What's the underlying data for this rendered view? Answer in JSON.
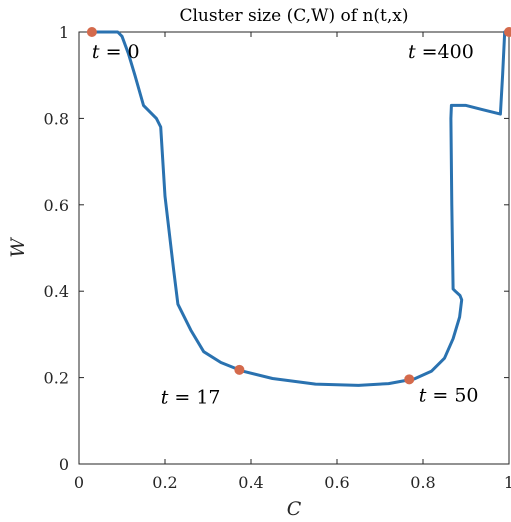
{
  "chart_data": {
    "type": "line",
    "title": "Cluster size (C,W) of n(t,x)",
    "xlabel": "C",
    "ylabel": "W",
    "xlim": [
      0,
      1
    ],
    "ylim": [
      0,
      1
    ],
    "xticks": [
      "0",
      "0.2",
      "0.4",
      "0.6",
      "0.8",
      "1"
    ],
    "yticks": [
      "0",
      "0.2",
      "0.4",
      "0.6",
      "0.8",
      "1"
    ],
    "grid": false,
    "line_color": "#2a72b0",
    "marker_color": "#d46a4c",
    "series": [
      {
        "x": [
          0.03,
          0.09,
          0.1,
          0.115,
          0.13,
          0.15,
          0.18,
          0.19,
          0.2,
          0.22,
          0.23,
          0.26,
          0.29,
          0.33,
          0.38,
          0.45,
          0.55,
          0.65,
          0.72,
          0.78,
          0.82,
          0.85,
          0.87,
          0.885,
          0.89,
          0.886,
          0.875,
          0.87,
          0.867,
          0.865,
          0.866,
          0.9,
          0.94,
          0.98,
          0.985,
          0.99,
          1.0
        ],
        "y": [
          1.0,
          1.0,
          0.99,
          0.95,
          0.9,
          0.83,
          0.8,
          0.78,
          0.62,
          0.45,
          0.37,
          0.31,
          0.26,
          0.235,
          0.215,
          0.198,
          0.185,
          0.182,
          0.186,
          0.197,
          0.215,
          0.245,
          0.29,
          0.34,
          0.38,
          0.39,
          0.4,
          0.405,
          0.6,
          0.8,
          0.83,
          0.83,
          0.82,
          0.81,
          0.9,
          1.0,
          1.0
        ]
      }
    ],
    "markers": [
      {
        "x": 0.03,
        "y": 1.0
      },
      {
        "x": 0.373,
        "y": 0.218
      },
      {
        "x": 0.768,
        "y": 0.196
      },
      {
        "x": 1.0,
        "y": 1.0
      }
    ],
    "annotations": [
      {
        "var": "t",
        "text": " = 0",
        "x": 0.03,
        "y": 0.94
      },
      {
        "var": "t",
        "text": " = 17",
        "x": 0.19,
        "y": 0.14
      },
      {
        "var": "t",
        "text": " = 50",
        "x": 0.79,
        "y": 0.145
      },
      {
        "var": "t",
        "text": " =400",
        "x": 0.765,
        "y": 0.94
      }
    ]
  }
}
